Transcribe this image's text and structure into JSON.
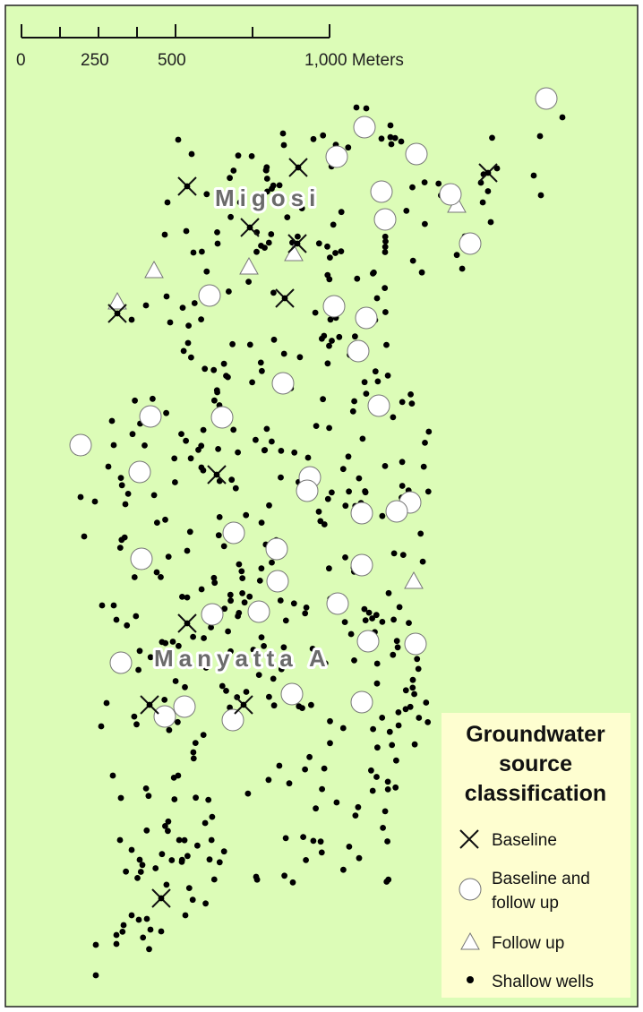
{
  "map": {
    "background_color": "#dcfcb7",
    "border_color": "#222222",
    "places": [
      {
        "name": "Migosi"
      },
      {
        "name": "Manyatta A"
      }
    ]
  },
  "scale_bar": {
    "labels": [
      "0",
      "250",
      "500",
      "1,000 Meters"
    ]
  },
  "legend": {
    "background_color": "#fefed0",
    "title_lines": [
      "Groundwater",
      "source",
      "classification"
    ],
    "items": [
      {
        "symbol": "x-cross",
        "label_lines": [
          "Baseline"
        ]
      },
      {
        "symbol": "circle",
        "label_lines": [
          "Baseline and",
          "follow up"
        ]
      },
      {
        "symbol": "triangle",
        "label_lines": [
          "Follow up"
        ]
      },
      {
        "symbol": "dot",
        "label_lines": [
          "Shallow wells"
        ]
      }
    ]
  }
}
